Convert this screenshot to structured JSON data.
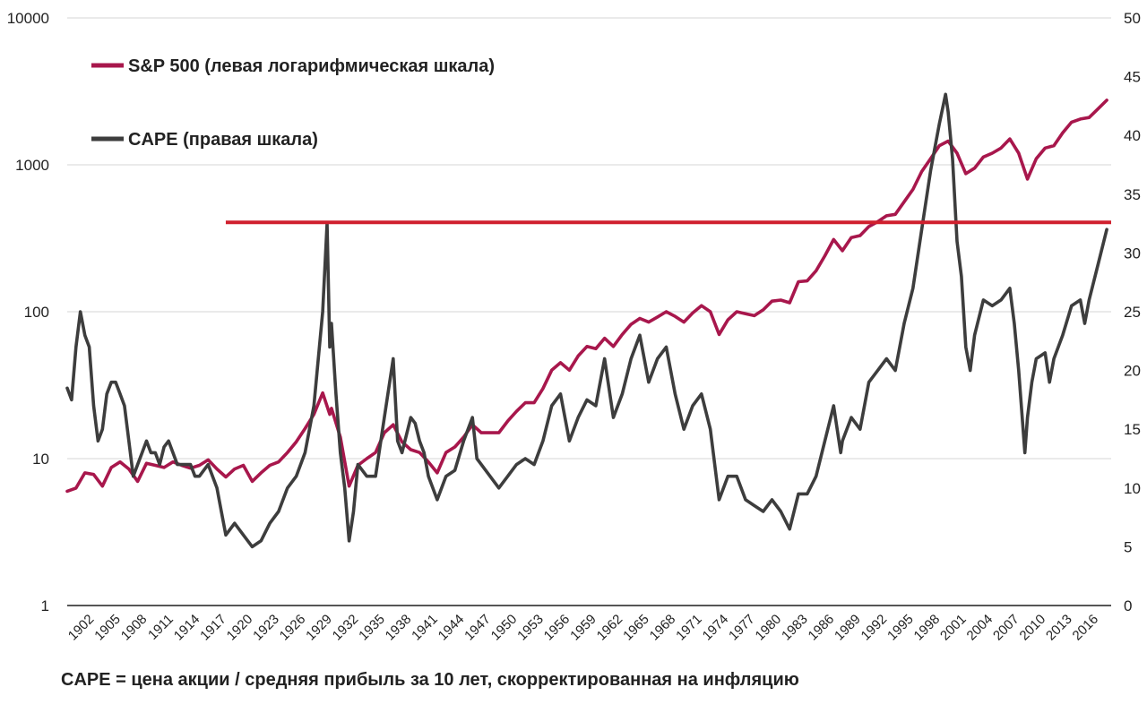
{
  "chart_data": {
    "type": "line",
    "title": "",
    "footnote": "CAPE = цена акции / средняя прибыль за 10 лет, скорректированная на инфляцию",
    "left_axis": {
      "scale": "log",
      "range": [
        1,
        10000
      ],
      "ticks": [
        "1",
        "10",
        "100",
        "1000",
        "10000"
      ]
    },
    "right_axis": {
      "scale": "linear",
      "range": [
        0,
        50
      ],
      "ticks": [
        "0",
        "5",
        "10",
        "15",
        "20",
        "25",
        "30",
        "35",
        "40",
        "45",
        "50"
      ]
    },
    "x_axis": {
      "range": [
        1900,
        2018
      ],
      "ticks": [
        "1902",
        "1905",
        "1908",
        "1911",
        "1914",
        "1917",
        "1920",
        "1923",
        "1926",
        "1929",
        "1932",
        "1935",
        "1938",
        "1941",
        "1944",
        "1947",
        "1950",
        "1953",
        "1956",
        "1959",
        "1962",
        "1965",
        "1968",
        "1971",
        "1974",
        "1977",
        "1980",
        "1983",
        "1986",
        "1989",
        "1992",
        "1995",
        "1998",
        "2001",
        "2004",
        "2007",
        "2010",
        "2013",
        "2016"
      ]
    },
    "grid": true,
    "legend_position": "top-left",
    "series": [
      {
        "name": "S&P 500 (левая логарифмическая шкала)",
        "axis": "left",
        "color": "#a8174c",
        "points": [
          [
            1900,
            6
          ],
          [
            1901,
            6.3
          ],
          [
            1902,
            8
          ],
          [
            1903,
            7.8
          ],
          [
            1904,
            6.5
          ],
          [
            1905,
            8.7
          ],
          [
            1906,
            9.5
          ],
          [
            1907,
            8.5
          ],
          [
            1908,
            7
          ],
          [
            1909,
            9.3
          ],
          [
            1910,
            9
          ],
          [
            1911,
            8.7
          ],
          [
            1912,
            9.5
          ],
          [
            1913,
            9
          ],
          [
            1914,
            8.6
          ],
          [
            1915,
            9
          ],
          [
            1916,
            9.8
          ],
          [
            1917,
            8.5
          ],
          [
            1918,
            7.5
          ],
          [
            1919,
            8.5
          ],
          [
            1920,
            9
          ],
          [
            1921,
            7
          ],
          [
            1922,
            8
          ],
          [
            1923,
            9
          ],
          [
            1924,
            9.5
          ],
          [
            1925,
            11
          ],
          [
            1926,
            13
          ],
          [
            1927,
            16
          ],
          [
            1928,
            20
          ],
          [
            1929,
            28
          ],
          [
            1929.8,
            20
          ],
          [
            1930,
            22
          ],
          [
            1931,
            14
          ],
          [
            1932,
            6.5
          ],
          [
            1933,
            9
          ],
          [
            1934,
            10
          ],
          [
            1935,
            11
          ],
          [
            1936,
            15
          ],
          [
            1937,
            17
          ],
          [
            1938,
            13
          ],
          [
            1939,
            11.5
          ],
          [
            1940,
            11
          ],
          [
            1941,
            9.5
          ],
          [
            1942,
            8
          ],
          [
            1943,
            11
          ],
          [
            1944,
            12
          ],
          [
            1945,
            14
          ],
          [
            1946,
            17
          ],
          [
            1947,
            15
          ],
          [
            1948,
            15
          ],
          [
            1949,
            15
          ],
          [
            1950,
            18
          ],
          [
            1951,
            21
          ],
          [
            1952,
            24
          ],
          [
            1953,
            24
          ],
          [
            1954,
            30
          ],
          [
            1955,
            40
          ],
          [
            1956,
            45
          ],
          [
            1957,
            40
          ],
          [
            1958,
            50
          ],
          [
            1959,
            58
          ],
          [
            1960,
            56
          ],
          [
            1961,
            66
          ],
          [
            1962,
            58
          ],
          [
            1963,
            70
          ],
          [
            1964,
            82
          ],
          [
            1965,
            90
          ],
          [
            1966,
            85
          ],
          [
            1967,
            92
          ],
          [
            1968,
            100
          ],
          [
            1969,
            93
          ],
          [
            1970,
            85
          ],
          [
            1971,
            98
          ],
          [
            1972,
            110
          ],
          [
            1973,
            100
          ],
          [
            1974,
            70
          ],
          [
            1975,
            88
          ],
          [
            1976,
            100
          ],
          [
            1977,
            97
          ],
          [
            1978,
            94
          ],
          [
            1979,
            103
          ],
          [
            1980,
            118
          ],
          [
            1981,
            120
          ],
          [
            1982,
            115
          ],
          [
            1983,
            160
          ],
          [
            1984,
            162
          ],
          [
            1985,
            190
          ],
          [
            1986,
            240
          ],
          [
            1987,
            310
          ],
          [
            1988,
            260
          ],
          [
            1989,
            320
          ],
          [
            1990,
            330
          ],
          [
            1991,
            380
          ],
          [
            1992,
            410
          ],
          [
            1993,
            450
          ],
          [
            1994,
            460
          ],
          [
            1995,
            560
          ],
          [
            1996,
            680
          ],
          [
            1997,
            900
          ],
          [
            1998,
            1100
          ],
          [
            1999,
            1350
          ],
          [
            2000,
            1450
          ],
          [
            2001,
            1200
          ],
          [
            2002,
            870
          ],
          [
            2003,
            950
          ],
          [
            2004,
            1130
          ],
          [
            2005,
            1200
          ],
          [
            2006,
            1300
          ],
          [
            2007,
            1500
          ],
          [
            2008,
            1200
          ],
          [
            2009,
            800
          ],
          [
            2010,
            1100
          ],
          [
            2011,
            1300
          ],
          [
            2012,
            1350
          ],
          [
            2013,
            1650
          ],
          [
            2014,
            1950
          ],
          [
            2015,
            2050
          ],
          [
            2016,
            2100
          ],
          [
            2017,
            2400
          ],
          [
            2018,
            2750
          ]
        ]
      },
      {
        "name": "CAPE (правая шкала)",
        "axis": "right",
        "color": "#3d3d3d",
        "points": [
          [
            1900,
            18.5
          ],
          [
            1900.5,
            17.5
          ],
          [
            1901,
            22
          ],
          [
            1901.5,
            25
          ],
          [
            1902,
            23
          ],
          [
            1902.5,
            22
          ],
          [
            1903,
            17
          ],
          [
            1903.5,
            14
          ],
          [
            1904,
            15
          ],
          [
            1904.5,
            18
          ],
          [
            1905,
            19
          ],
          [
            1905.5,
            19
          ],
          [
            1906,
            18
          ],
          [
            1906.5,
            17
          ],
          [
            1907,
            14
          ],
          [
            1907.5,
            11
          ],
          [
            1908,
            12
          ],
          [
            1908.5,
            13
          ],
          [
            1909,
            14
          ],
          [
            1909.5,
            13
          ],
          [
            1910,
            13
          ],
          [
            1910.5,
            12
          ],
          [
            1911,
            13.5
          ],
          [
            1911.5,
            14
          ],
          [
            1912,
            13
          ],
          [
            1912.5,
            12
          ],
          [
            1913,
            12
          ],
          [
            1913.5,
            12
          ],
          [
            1914,
            12
          ],
          [
            1914.5,
            11
          ],
          [
            1915,
            11
          ],
          [
            1915.5,
            11.5
          ],
          [
            1916,
            12
          ],
          [
            1916.5,
            11
          ],
          [
            1917,
            10
          ],
          [
            1917.5,
            8
          ],
          [
            1918,
            6
          ],
          [
            1919,
            7
          ],
          [
            1920,
            6
          ],
          [
            1920.5,
            5.5
          ],
          [
            1921,
            5
          ],
          [
            1922,
            5.5
          ],
          [
            1923,
            7
          ],
          [
            1924,
            8
          ],
          [
            1925,
            10
          ],
          [
            1926,
            11
          ],
          [
            1927,
            13
          ],
          [
            1928,
            17
          ],
          [
            1929,
            25
          ],
          [
            1929.5,
            32.5
          ],
          [
            1929.8,
            22
          ],
          [
            1930,
            24
          ],
          [
            1930.5,
            18
          ],
          [
            1931,
            13
          ],
          [
            1931.5,
            10
          ],
          [
            1932,
            5.5
          ],
          [
            1932.5,
            8
          ],
          [
            1933,
            12
          ],
          [
            1934,
            11
          ],
          [
            1935,
            11
          ],
          [
            1936,
            16
          ],
          [
            1937,
            21
          ],
          [
            1937.5,
            14
          ],
          [
            1938,
            13
          ],
          [
            1939,
            16
          ],
          [
            1939.5,
            15.5
          ],
          [
            1940,
            14
          ],
          [
            1940.5,
            13
          ],
          [
            1941,
            11
          ],
          [
            1942,
            9
          ],
          [
            1943,
            11
          ],
          [
            1944,
            11.5
          ],
          [
            1945,
            14
          ],
          [
            1946,
            16
          ],
          [
            1946.5,
            12.5
          ],
          [
            1947,
            12
          ],
          [
            1948,
            11
          ],
          [
            1949,
            10
          ],
          [
            1950,
            11
          ],
          [
            1951,
            12
          ],
          [
            1952,
            12.5
          ],
          [
            1953,
            12
          ],
          [
            1954,
            14
          ],
          [
            1955,
            17
          ],
          [
            1956,
            18
          ],
          [
            1957,
            14
          ],
          [
            1958,
            16
          ],
          [
            1959,
            17.5
          ],
          [
            1960,
            17
          ],
          [
            1961,
            21
          ],
          [
            1962,
            16
          ],
          [
            1963,
            18
          ],
          [
            1964,
            21
          ],
          [
            1965,
            23
          ],
          [
            1966,
            19
          ],
          [
            1967,
            21
          ],
          [
            1968,
            22
          ],
          [
            1969,
            18
          ],
          [
            1970,
            15
          ],
          [
            1971,
            17
          ],
          [
            1972,
            18
          ],
          [
            1973,
            15
          ],
          [
            1974,
            9
          ],
          [
            1975,
            11
          ],
          [
            1976,
            11
          ],
          [
            1977,
            9
          ],
          [
            1978,
            8.5
          ],
          [
            1979,
            8
          ],
          [
            1980,
            9
          ],
          [
            1981,
            8
          ],
          [
            1982,
            6.5
          ],
          [
            1983,
            9.5
          ],
          [
            1984,
            9.5
          ],
          [
            1985,
            11
          ],
          [
            1986,
            14
          ],
          [
            1987,
            17
          ],
          [
            1987.8,
            13
          ],
          [
            1988,
            14
          ],
          [
            1989,
            16
          ],
          [
            1990,
            15
          ],
          [
            1991,
            19
          ],
          [
            1992,
            20
          ],
          [
            1993,
            21
          ],
          [
            1994,
            20
          ],
          [
            1995,
            24
          ],
          [
            1996,
            27
          ],
          [
            1997,
            32
          ],
          [
            1998,
            37
          ],
          [
            1999,
            41
          ],
          [
            1999.7,
            43.5
          ],
          [
            2000,
            42
          ],
          [
            2000.5,
            38
          ],
          [
            2001,
            31
          ],
          [
            2001.5,
            28
          ],
          [
            2002,
            22
          ],
          [
            2002.5,
            20
          ],
          [
            2003,
            23
          ],
          [
            2004,
            26
          ],
          [
            2005,
            25.5
          ],
          [
            2006,
            26
          ],
          [
            2007,
            27
          ],
          [
            2007.5,
            24
          ],
          [
            2008,
            20
          ],
          [
            2008.7,
            13
          ],
          [
            2009,
            16
          ],
          [
            2009.5,
            19
          ],
          [
            2010,
            21
          ],
          [
            2011,
            21.5
          ],
          [
            2011.5,
            19
          ],
          [
            2012,
            21
          ],
          [
            2013,
            23
          ],
          [
            2014,
            25.5
          ],
          [
            2015,
            26
          ],
          [
            2015.5,
            24
          ],
          [
            2016,
            26
          ],
          [
            2017,
            29
          ],
          [
            2018,
            32
          ]
        ]
      },
      {
        "name": "",
        "axis": "right",
        "color": "#d0202e",
        "type": "reference_line",
        "value": 32.6,
        "x_start": 1918,
        "x_end": 2018.5
      }
    ]
  }
}
